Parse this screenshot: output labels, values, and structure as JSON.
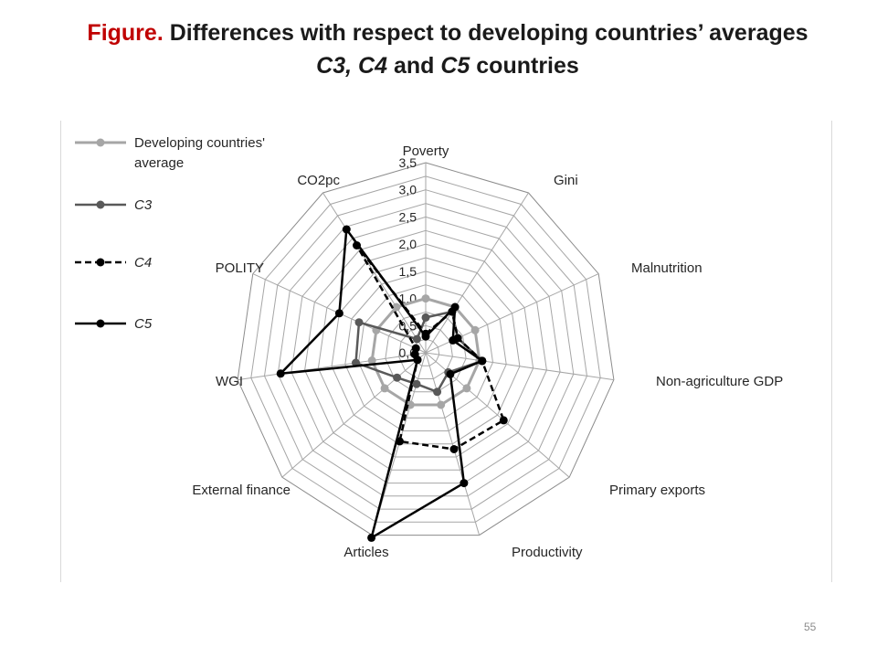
{
  "title": {
    "prefix": "Figure.",
    "line1_rest": " Differences with respect to developing countries’ averages",
    "line2_parts": [
      {
        "text": "C3",
        "italic": true
      },
      {
        "text": ", ",
        "italic": true
      },
      {
        "text": "C4",
        "italic": true
      },
      {
        "text": " and ",
        "italic": false
      },
      {
        "text": "C5",
        "italic": true
      },
      {
        "text": " countries",
        "italic": false
      }
    ]
  },
  "slide_number": "55",
  "chart_data": {
    "type": "radar",
    "axes": [
      "Poverty",
      "Gini",
      "Malnutrition",
      "Non-agriculture GDP",
      "Primary exports",
      "Productivity",
      "Articles",
      "External finance",
      "WGI",
      "POLITY",
      "CO2pc"
    ],
    "rlim": [
      0,
      3.5
    ],
    "ticks": [
      "0,0",
      "0,5",
      "1,0",
      "1,5",
      "2,0",
      "2,5",
      "3,0",
      "3,5"
    ],
    "grid": true,
    "legend_position": "top-left",
    "series": [
      {
        "name": "Developing countries' average",
        "name_lines": [
          "Developing countries'",
          "average"
        ],
        "italic": false,
        "color": "#a6a6a6",
        "dash": false,
        "values": [
          1,
          1,
          1,
          1,
          1,
          1,
          1,
          1,
          1,
          1,
          1
        ]
      },
      {
        "name": "C3",
        "name_lines": [
          "C3"
        ],
        "italic": true,
        "color": "#595959",
        "dash": false,
        "values": [
          0.65,
          0.9,
          0.65,
          1.05,
          0.55,
          0.75,
          0.6,
          0.7,
          1.3,
          1.35,
          0.3
        ]
      },
      {
        "name": "C4",
        "name_lines": [
          "C4"
        ],
        "italic": true,
        "color": "#000000",
        "dash": true,
        "values": [
          0.35,
          0.9,
          0.65,
          1.05,
          1.9,
          1.85,
          1.7,
          0.2,
          0.2,
          0.2,
          2.35
        ]
      },
      {
        "name": "C5",
        "name_lines": [
          "C5"
        ],
        "italic": true,
        "color": "#000000",
        "dash": false,
        "values": [
          0.3,
          1.0,
          0.55,
          1.05,
          0.6,
          2.5,
          3.55,
          0.2,
          2.7,
          1.75,
          2.7
        ]
      }
    ]
  }
}
